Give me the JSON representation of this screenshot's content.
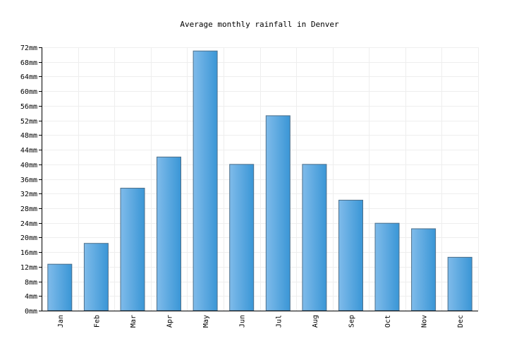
{
  "chart_data": {
    "type": "bar",
    "title": "Average monthly rainfall in Denver",
    "categories": [
      "Jan",
      "Feb",
      "Mar",
      "Apr",
      "May",
      "Jun",
      "Jul",
      "Aug",
      "Sep",
      "Oct",
      "Nov",
      "Dec"
    ],
    "values": [
      12.7,
      18.4,
      33.5,
      42.0,
      71.0,
      40.0,
      53.3,
      40.0,
      30.2,
      23.9,
      22.4,
      14.6
    ],
    "unit": "mm",
    "ylim": [
      0,
      72
    ],
    "ytick_step": 4,
    "grid": true,
    "legend": "none",
    "colors": {
      "bar_light": "#7fbbea",
      "bar_dark": "#3a96d6",
      "bar_border": "#4d6f8a",
      "grid": "#eeeeee",
      "axis": "#000000"
    }
  }
}
